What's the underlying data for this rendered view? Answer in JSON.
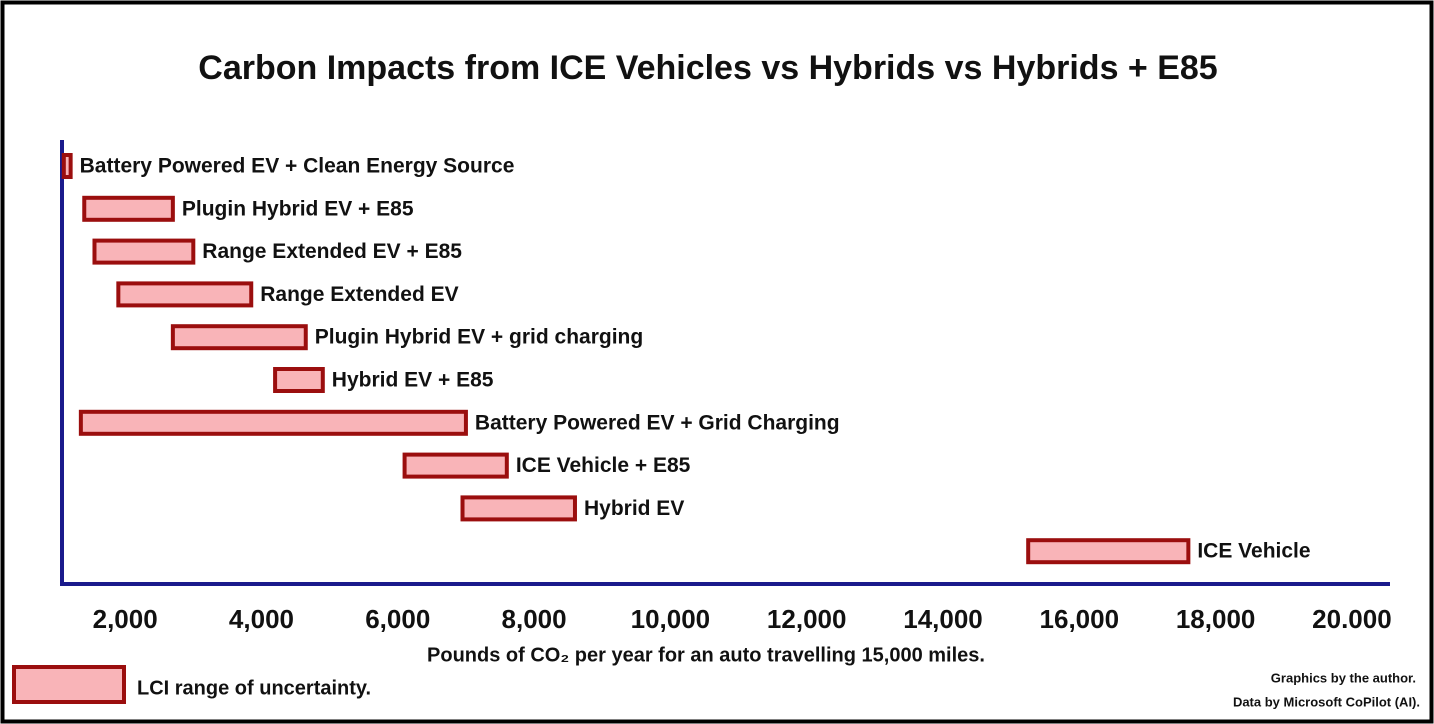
{
  "chart_data": {
    "type": "range-bar",
    "title": "Carbon Impacts from ICE Vehicles vs Hybrids vs Hybrids + E85",
    "x_label": "Pounds of CO₂ per year for an auto travelling 15,000 miles.",
    "categories": [
      "Battery Powered EV + Clean Energy Source",
      "Plugin Hybrid EV + E85",
      "Range Extended EV + E85",
      "Range Extended EV",
      "Plugin Hybrid EV + grid charging",
      "Hybrid EV + E85",
      "Battery Powered EV + Grid Charging",
      "ICE Vehicle + E85",
      "Hybrid EV",
      "ICE Vehicle"
    ],
    "low": [
      1100,
      1400,
      1550,
      1900,
      2700,
      4200,
      1350,
      6100,
      6950,
      15250
    ],
    "high": [
      1200,
      2700,
      3000,
      3850,
      4650,
      4900,
      7000,
      7600,
      8600,
      17600
    ],
    "legend_label": "LCI range of uncertainty.",
    "fill_color": "#f9b4b8",
    "edge_color": "#9b0e0e",
    "axis_color": "#1a1a8c",
    "xlim": [
      1000,
      20500
    ],
    "xticks": [
      {
        "value": 2000,
        "label": "2,000"
      },
      {
        "value": 4000,
        "label": "4,000"
      },
      {
        "value": 6000,
        "label": "6,000"
      },
      {
        "value": 8000,
        "label": "8,000"
      },
      {
        "value": 10000,
        "label": "10,000"
      },
      {
        "value": 12000,
        "label": "12,000"
      },
      {
        "value": 14000,
        "label": "14,000"
      },
      {
        "value": 16000,
        "label": "16,000"
      },
      {
        "value": 18000,
        "label": "18,000"
      },
      {
        "value": 20000,
        "label": "20.000"
      }
    ],
    "grid": false,
    "notes": [
      "Graphics by the author.",
      "Data by Microsoft CoPilot (AI)."
    ]
  }
}
